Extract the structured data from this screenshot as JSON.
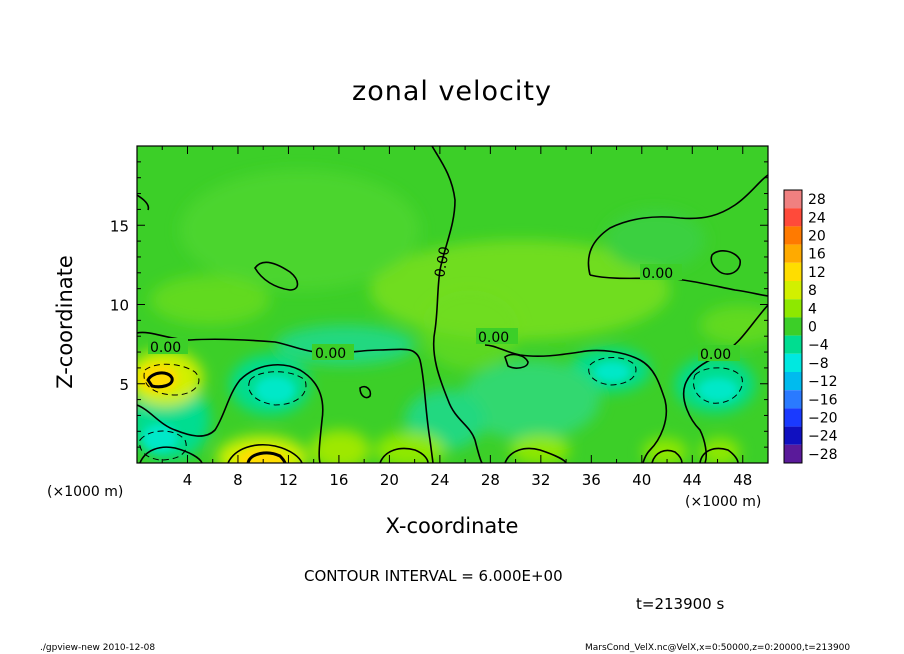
{
  "chart_data": {
    "type": "heatmap",
    "title": "zonal velocity",
    "xlabel": "X-coordinate",
    "ylabel": "Z-coordinate",
    "x_unit": "(×1000 m)",
    "z_unit": "(×1000 m)",
    "xlim": [
      0,
      50
    ],
    "ylim": [
      0,
      20
    ],
    "x_ticks": [
      4,
      8,
      12,
      16,
      20,
      24,
      28,
      32,
      36,
      40,
      44,
      48
    ],
    "y_ticks": [
      5,
      10,
      15
    ],
    "colorbar": {
      "levels": [
        28,
        24,
        20,
        16,
        12,
        8,
        4,
        0,
        -4,
        -8,
        -12,
        -16,
        -20,
        -24,
        -28
      ],
      "labels": [
        "28",
        "24",
        "20",
        "16",
        "12",
        "8",
        "4",
        "0",
        "−4",
        "−8",
        "−12",
        "−16",
        "−20",
        "−24",
        "−28"
      ],
      "colors": [
        "#f08080",
        "#ff4a3a",
        "#ff7a00",
        "#ffaa00",
        "#ffdd00",
        "#d2f000",
        "#8ee800",
        "#3ccf28",
        "#00dd90",
        "#00e8e0",
        "#00bbee",
        "#2a7aff",
        "#1a3aff",
        "#1010c0",
        "#5a1a9a"
      ]
    },
    "contour_labels": [
      "0.00",
      "0.00",
      "0.00",
      "0.00",
      "0.00",
      "0.00"
    ],
    "contour_interval": "CONTOUR INTERVAL = 6.000E+00",
    "time_label": "t=213900 s"
  },
  "footer": {
    "left": "./gpview-new   2010-12-08",
    "right": "MarsCond_VelX.nc@VelX,x=0:50000,z=0:20000,t=213900"
  },
  "colors": {
    "background_field": "#3ccf28",
    "positive_blob": "#d2f000",
    "strong_positive": "#ffdd00",
    "negative_blob": "#00dd90"
  }
}
